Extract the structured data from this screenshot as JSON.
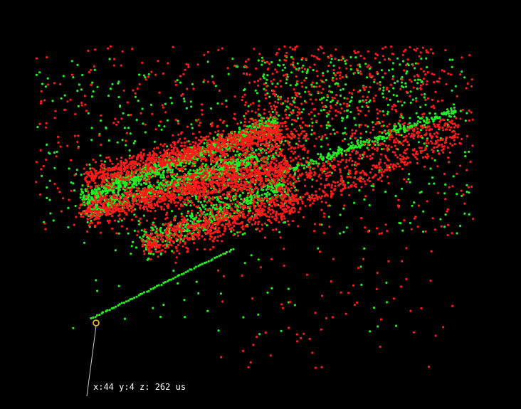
{
  "readout": {
    "text": "x:44 y:4 z: 262 us"
  },
  "colors": {
    "background": "#000000",
    "series_green": "#22ee22",
    "series_red": "#ff1a1a",
    "cursor_marker": "#ffcc00",
    "leader_line": "#cccccc",
    "readout_text": "#ffffff"
  },
  "chart_data": {
    "type": "scatter",
    "projection": "3d-perspective",
    "title": "",
    "xlabel": "",
    "ylabel": "",
    "zlabel": "",
    "legend": "none",
    "grid": false,
    "series": [
      {
        "color": "green",
        "marker": "dot"
      },
      {
        "color": "red",
        "marker": "dot"
      }
    ],
    "cursor": {
      "x": 44,
      "y": 4,
      "z": 262,
      "z_unit": "us"
    }
  }
}
